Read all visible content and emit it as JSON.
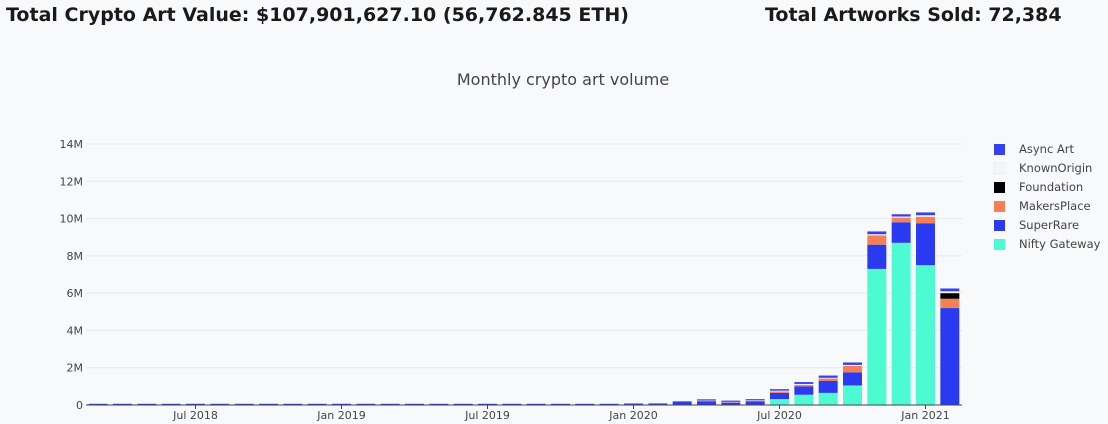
{
  "header": {
    "total_value": "Total Crypto Art Value: $107,901,627.10 (56,762.845 ETH)",
    "total_sold": "Total Artworks Sold: 72,384"
  },
  "chart_data": {
    "type": "bar",
    "stacked": true,
    "title": "Monthly crypto art volume",
    "xlabel": "",
    "ylabel": "",
    "ylim": [
      0,
      14000000
    ],
    "y_ticks": [
      0,
      2000000,
      4000000,
      6000000,
      8000000,
      10000000,
      12000000,
      14000000
    ],
    "y_tick_labels": [
      "0",
      "2M",
      "4M",
      "6M",
      "8M",
      "10M",
      "12M",
      "14M"
    ],
    "x_tick_labels": [
      "Jul 2018",
      "Jan 2019",
      "Jul 2019",
      "Jan 2020",
      "Jul 2020",
      "Jan 2021"
    ],
    "x_tick_index": [
      4,
      10,
      16,
      22,
      28,
      34
    ],
    "categories": [
      "2018-03",
      "2018-04",
      "2018-05",
      "2018-06",
      "2018-07",
      "2018-08",
      "2018-09",
      "2018-10",
      "2018-11",
      "2018-12",
      "2019-01",
      "2019-02",
      "2019-03",
      "2019-04",
      "2019-05",
      "2019-06",
      "2019-07",
      "2019-08",
      "2019-09",
      "2019-10",
      "2019-11",
      "2019-12",
      "2020-01",
      "2020-02",
      "2020-03",
      "2020-04",
      "2020-05",
      "2020-06",
      "2020-07",
      "2020-08",
      "2020-09",
      "2020-10",
      "2020-11",
      "2020-12",
      "2021-01",
      "2021-02"
    ],
    "legend_position": "right",
    "grid": true,
    "series": [
      {
        "name": "Nifty Gateway",
        "color": "#4efad2",
        "values": [
          0,
          0,
          0,
          0,
          0,
          0,
          0,
          0,
          0,
          0,
          0,
          0,
          0,
          0,
          0,
          0,
          0,
          0,
          0,
          0,
          0,
          0,
          0,
          0,
          0,
          0,
          0,
          0,
          320000,
          550000,
          650000,
          1050000,
          7300000,
          8700000,
          7500000,
          0
        ]
      },
      {
        "name": "SuperRare",
        "color": "#2a3af0",
        "values": [
          20000,
          30000,
          40000,
          30000,
          30000,
          20000,
          8000,
          5000,
          5000,
          5000,
          5000,
          5000,
          30000,
          5000,
          5000,
          5000,
          8000,
          8000,
          8000,
          8000,
          8000,
          40000,
          80000,
          90000,
          200000,
          200000,
          130000,
          200000,
          330000,
          450000,
          650000,
          700000,
          1300000,
          1100000,
          2250000,
          5200000
        ]
      },
      {
        "name": "MakersPlace",
        "color": "#f77f54",
        "values": [
          0,
          0,
          0,
          0,
          0,
          0,
          0,
          0,
          0,
          0,
          0,
          0,
          0,
          0,
          0,
          0,
          0,
          0,
          0,
          0,
          0,
          0,
          0,
          0,
          0,
          20000,
          10000,
          20000,
          80000,
          80000,
          120000,
          350000,
          500000,
          250000,
          350000,
          500000
        ]
      },
      {
        "name": "Foundation",
        "color": "#000000",
        "values": [
          0,
          0,
          0,
          0,
          0,
          0,
          0,
          0,
          0,
          0,
          0,
          0,
          0,
          0,
          0,
          0,
          0,
          0,
          0,
          0,
          0,
          0,
          0,
          0,
          0,
          0,
          0,
          0,
          0,
          0,
          0,
          0,
          0,
          0,
          0,
          300000
        ]
      },
      {
        "name": "KnownOrigin",
        "color": "#f4f5f7",
        "values": [
          0,
          0,
          0,
          0,
          0,
          0,
          0,
          0,
          0,
          0,
          0,
          0,
          0,
          0,
          0,
          0,
          0,
          0,
          0,
          0,
          0,
          0,
          0,
          10000,
          10000,
          20000,
          30000,
          30000,
          40000,
          50000,
          40000,
          50000,
          60000,
          60000,
          80000,
          100000
        ]
      },
      {
        "name": "Async Art",
        "color": "#3640ef",
        "values": [
          0,
          0,
          0,
          0,
          0,
          0,
          0,
          0,
          0,
          0,
          0,
          0,
          0,
          0,
          0,
          0,
          0,
          0,
          0,
          0,
          0,
          0,
          0,
          0,
          0,
          50000,
          30000,
          50000,
          80000,
          100000,
          120000,
          130000,
          150000,
          120000,
          150000,
          150000
        ]
      }
    ]
  }
}
